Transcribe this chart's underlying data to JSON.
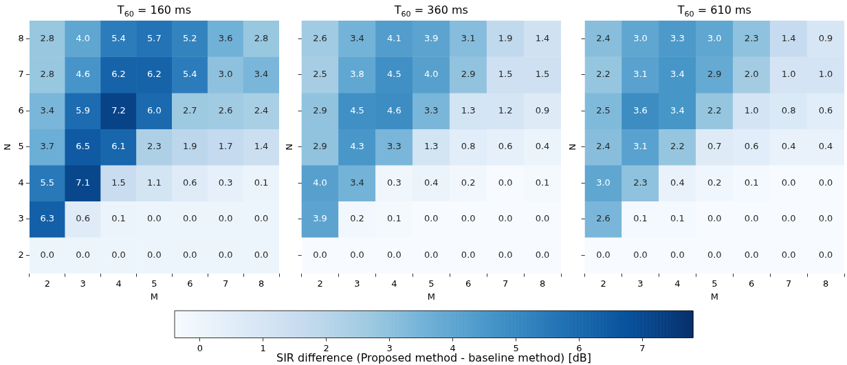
{
  "chart_data": [
    {
      "type": "heatmap",
      "title": "T$_{60}$ = 160 ms",
      "xlabel": "M",
      "ylabel": "N",
      "categories": [
        "2",
        "3",
        "4",
        "5",
        "6",
        "7",
        "8"
      ],
      "y_categories": [
        "8",
        "7",
        "6",
        "5",
        "4",
        "3",
        "2"
      ],
      "cells": [
        [
          2.8,
          4.0,
          5.4,
          5.7,
          5.2,
          3.6,
          2.8
        ],
        [
          2.8,
          4.6,
          6.2,
          6.2,
          5.4,
          3.0,
          3.4
        ],
        [
          3.4,
          5.9,
          7.2,
          6.0,
          2.7,
          2.6,
          2.4
        ],
        [
          3.7,
          6.5,
          6.1,
          2.3,
          1.9,
          1.7,
          1.4
        ],
        [
          5.5,
          7.1,
          1.5,
          1.1,
          0.6,
          0.3,
          0.1
        ],
        [
          6.3,
          0.6,
          0.1,
          0.0,
          0.0,
          0.0,
          0.0
        ],
        [
          0.0,
          0.0,
          0.0,
          0.0,
          0.0,
          0.0,
          0.0
        ]
      ],
      "cell_labels": [
        [
          "2.8",
          "4.0",
          "5.4",
          "5.7",
          "5.2",
          "3.6",
          "2.8"
        ],
        [
          "2.8",
          "4.6",
          "6.2",
          "6.2",
          "5.4",
          "3.0",
          "3.4"
        ],
        [
          "3.4",
          "5.9",
          "7.2",
          "6.0",
          "2.7",
          "2.6",
          "2.4"
        ],
        [
          "3.7",
          "6.5",
          "6.1",
          "2.3",
          "1.9",
          "1.7",
          "1.4"
        ],
        [
          "5.5",
          "7.1",
          "1.5",
          "1.1",
          "0.6",
          "0.3",
          "0.1"
        ],
        [
          "6.3",
          "0.6",
          "0.1",
          "0.0",
          "0.0",
          "0.0",
          "0.0"
        ],
        [
          "0.0",
          "0.0",
          "0.0",
          "0.0",
          "0.0",
          "0.0",
          "0.0"
        ]
      ],
      "data_labels": true,
      "clim": [
        -0.4,
        7.8
      ],
      "cticks": [
        0,
        1,
        2,
        3,
        4,
        5,
        6,
        7
      ],
      "clabel": "SIR difference (Proposed method - baseline method) [dB]"
    },
    {
      "type": "heatmap",
      "title": "T$_{60}$ = 360 ms",
      "xlabel": "M",
      "ylabel": "N",
      "categories": [
        "2",
        "3",
        "4",
        "5",
        "6",
        "7",
        "8"
      ],
      "y_categories": [
        "8",
        "7",
        "6",
        "5",
        "4",
        "3",
        "2"
      ],
      "cells": [
        [
          2.6,
          3.4,
          4.1,
          3.9,
          3.1,
          1.9,
          1.4
        ],
        [
          2.5,
          3.8,
          4.5,
          4.0,
          2.9,
          1.5,
          1.5
        ],
        [
          2.9,
          4.5,
          4.6,
          3.3,
          1.3,
          1.2,
          0.9
        ],
        [
          2.9,
          4.3,
          3.3,
          1.3,
          0.8,
          0.6,
          0.4
        ],
        [
          4.0,
          3.4,
          0.3,
          0.4,
          0.2,
          0.0,
          0.1
        ],
        [
          3.9,
          0.2,
          0.1,
          0.0,
          0.0,
          0.0,
          0.0
        ],
        [
          0.0,
          0.0,
          0.0,
          0.0,
          0.0,
          0.0,
          0.0
        ]
      ],
      "cell_labels": [
        [
          "2.6",
          "3.4",
          "4.1",
          "3.9",
          "3.1",
          "1.9",
          "1.4"
        ],
        [
          "2.5",
          "3.8",
          "4.5",
          "4.0",
          "2.9",
          "1.5",
          "1.5"
        ],
        [
          "2.9",
          "4.5",
          "4.6",
          "3.3",
          "1.3",
          "1.2",
          "0.9"
        ],
        [
          "2.9",
          "4.3",
          "3.3",
          "1.3",
          "0.8",
          "0.6",
          "0.4"
        ],
        [
          "4.0",
          "3.4",
          "0.3",
          "0.4",
          "0.2",
          "0.0",
          "0.1"
        ],
        [
          "3.9",
          "0.2",
          "0.1",
          "0.0",
          "0.0",
          "0.0",
          "0.0"
        ],
        [
          "0.0",
          "0.0",
          "0.0",
          "0.0",
          "0.0",
          "0.0",
          "0.0"
        ]
      ],
      "data_labels": true,
      "tick_labels": "x"
    },
    {
      "type": "heatmap",
      "title": "T$_{60}$ = 610 ms",
      "xlabel": "M",
      "ylabel": "N",
      "categories": [
        "2",
        "3",
        "4",
        "5",
        "6",
        "7",
        "8"
      ],
      "y_categories": [
        "8",
        "7",
        "6",
        "5",
        "4",
        "3",
        "2"
      ],
      "cells": [
        [
          2.4,
          3.0,
          3.3,
          3.0,
          2.3,
          1.4,
          0.9
        ],
        [
          2.2,
          3.1,
          3.4,
          2.9,
          2.0,
          1.0,
          1.0
        ],
        [
          2.5,
          3.6,
          3.4,
          2.2,
          1.0,
          0.8,
          0.6
        ],
        [
          2.4,
          3.1,
          2.2,
          0.7,
          0.6,
          0.4,
          0.4
        ],
        [
          3.0,
          2.3,
          0.4,
          0.2,
          0.1,
          0.0,
          0.0
        ],
        [
          2.6,
          0.1,
          0.1,
          0.0,
          0.0,
          0.0,
          0.0
        ],
        [
          0.0,
          0.0,
          0.0,
          0.0,
          0.0,
          0.0,
          0.0
        ]
      ],
      "cell_labels": [
        [
          "2.4",
          "3.0",
          "3.3",
          "3.0",
          "2.3",
          "1.4",
          "0.9"
        ],
        [
          "2.2",
          "3.1",
          "3.4",
          "2.9",
          "2.0",
          "1.0",
          "1.0"
        ],
        [
          "2.5",
          "3.6",
          "3.4",
          "2.2",
          "1.0",
          "0.8",
          "0.6"
        ],
        [
          "2.4",
          "3.1",
          "2.2",
          "0.7",
          "0.6",
          "0.4",
          "0.4"
        ],
        [
          "3.0",
          "2.3",
          "0.4",
          "0.2",
          "0.1",
          "0.0",
          "0.0"
        ],
        [
          "2.6",
          "0.1",
          "0.1",
          "0.0",
          "0.0",
          "0.0",
          "0.0"
        ],
        [
          "0.0",
          "0.0",
          "0.0",
          "0.0",
          "0.0",
          "0.0",
          "0.0"
        ]
      ],
      "data_labels": true,
      "tick_labels": "x"
    }
  ]
}
